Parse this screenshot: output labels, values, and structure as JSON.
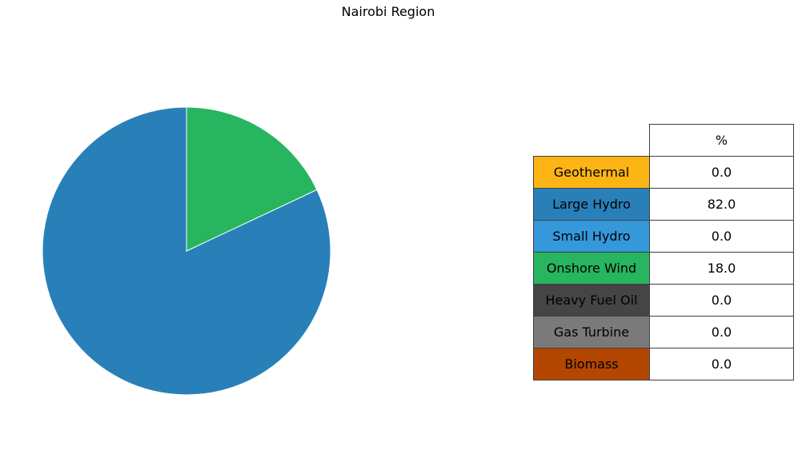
{
  "chart_data": {
    "type": "pie",
    "title": "Nairobi Region",
    "table_header": "%",
    "slices": [
      {
        "label": "Geothermal",
        "value": 0.0,
        "display": "0.0",
        "color": "#FDB515"
      },
      {
        "label": "Large Hydro",
        "value": 82.0,
        "display": "82.0",
        "color": "#2980B9"
      },
      {
        "label": "Small Hydro",
        "value": 0.0,
        "display": "0.0",
        "color": "#3498DB"
      },
      {
        "label": "Onshore Wind",
        "value": 18.0,
        "display": "18.0",
        "color": "#27B560"
      },
      {
        "label": "Heavy Fuel Oil",
        "value": 0.0,
        "display": "0.0",
        "color": "#454545"
      },
      {
        "label": "Gas Turbine",
        "value": 0.0,
        "display": "0.0",
        "color": "#7A7A7A"
      },
      {
        "label": "Biomass",
        "value": 0.0,
        "display": "0.0",
        "color": "#B34700"
      }
    ],
    "start_angle": "top",
    "direction": "counterclockwise"
  }
}
